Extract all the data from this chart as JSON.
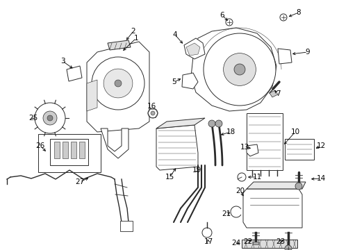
{
  "background_color": "#ffffff",
  "figsize": [
    4.89,
    3.6
  ],
  "dpi": 100,
  "line_color": "#333333",
  "line_width": 0.7
}
